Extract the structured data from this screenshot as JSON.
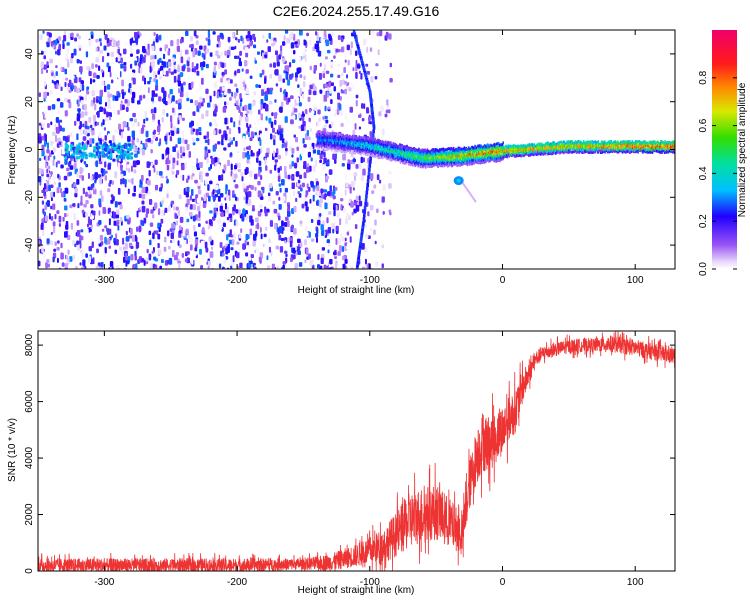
{
  "title": "C2E6.2024.255.17.49.G16",
  "chart_data": [
    {
      "type": "heatmap",
      "xlabel": "Height of straight line (km)",
      "ylabel": "Frequency (Hz)",
      "xlim": [
        -350,
        130
      ],
      "ylim": [
        -50,
        50
      ],
      "xticks": [
        -300,
        -200,
        -100,
        0,
        100
      ],
      "yticks": [
        -40,
        -20,
        0,
        20,
        40
      ],
      "colorbar": {
        "label": "Normalized spectral amplitude",
        "range": [
          0,
          1
        ],
        "ticks": [
          0.0,
          0.2,
          0.4,
          0.6,
          0.8
        ],
        "colormap": "purple-blue-cyan-green-yellow-red-magenta"
      },
      "features": {
        "noise_region_x": [
          -350,
          -100
        ],
        "noise_amplitude": 0.3,
        "carrier_x": [
          -140,
          130
        ],
        "carrier_frequency_hz": [
          {
            "x": -140,
            "f": 5
          },
          {
            "x": -100,
            "f": 2
          },
          {
            "x": -60,
            "f": -3
          },
          {
            "x": -30,
            "f": -2
          },
          {
            "x": 0,
            "f": 0
          },
          {
            "x": 50,
            "f": 2
          },
          {
            "x": 130,
            "f": 2
          }
        ],
        "carrier_amplitude": [
          {
            "x": -140,
            "a": 0.3
          },
          {
            "x": -100,
            "a": 0.4
          },
          {
            "x": -50,
            "a": 0.6
          },
          {
            "x": -10,
            "a": 0.8
          },
          {
            "x": 50,
            "a": 0.75
          },
          {
            "x": 130,
            "a": 0.9
          }
        ],
        "low_frequency_patch": {
          "x": [
            -330,
            -280
          ],
          "f": [
            -3,
            3
          ],
          "a": 0.35
        },
        "tail_blob": {
          "x": -33,
          "f": -13
        },
        "tail_streak": {
          "x": [
            -30,
            -20
          ],
          "f": [
            -14,
            -22
          ]
        },
        "arc": [
          {
            "x": -112,
            "f": 50
          },
          {
            "x": -100,
            "f": 25
          },
          {
            "x": -97,
            "f": 10
          },
          {
            "x": -105,
            "f": -30
          },
          {
            "x": -110,
            "f": -50
          }
        ]
      }
    },
    {
      "type": "line",
      "xlabel": "Height of straight line (km)",
      "ylabel": "SNR (10 * v/v)",
      "xlim": [
        -350,
        130
      ],
      "ylim": [
        0,
        8500
      ],
      "xticks": [
        -300,
        -200,
        -100,
        0,
        100
      ],
      "yticks": [
        0,
        2000,
        4000,
        6000,
        8000
      ],
      "series": [
        {
          "color": "#ee3333",
          "x": [
            -350,
            -300,
            -250,
            -200,
            -150,
            -130,
            -110,
            -90,
            -80,
            -70,
            -60,
            -50,
            -40,
            -30,
            -25,
            -20,
            -15,
            -10,
            -5,
            0,
            5,
            10,
            15,
            20,
            25,
            30,
            40,
            50,
            60,
            70,
            80,
            90,
            100,
            110,
            120,
            130
          ],
          "y": [
            200,
            200,
            200,
            200,
            250,
            300,
            550,
            900,
            1300,
            1800,
            2000,
            2100,
            1700,
            1300,
            3000,
            4000,
            4600,
            4500,
            4700,
            5000,
            5400,
            5700,
            6500,
            7000,
            7500,
            7700,
            7850,
            7950,
            8000,
            8000,
            8050,
            8000,
            7900,
            7800,
            7700,
            7600
          ],
          "spread": [
            250,
            250,
            250,
            250,
            200,
            300,
            400,
            600,
            800,
            1000,
            1000,
            1000,
            900,
            700,
            900,
            1000,
            1100,
            1000,
            900,
            900,
            800,
            800,
            600,
            400,
            300,
            250,
            250,
            250,
            250,
            250,
            300,
            300,
            300,
            300,
            300,
            300
          ]
        }
      ]
    }
  ]
}
